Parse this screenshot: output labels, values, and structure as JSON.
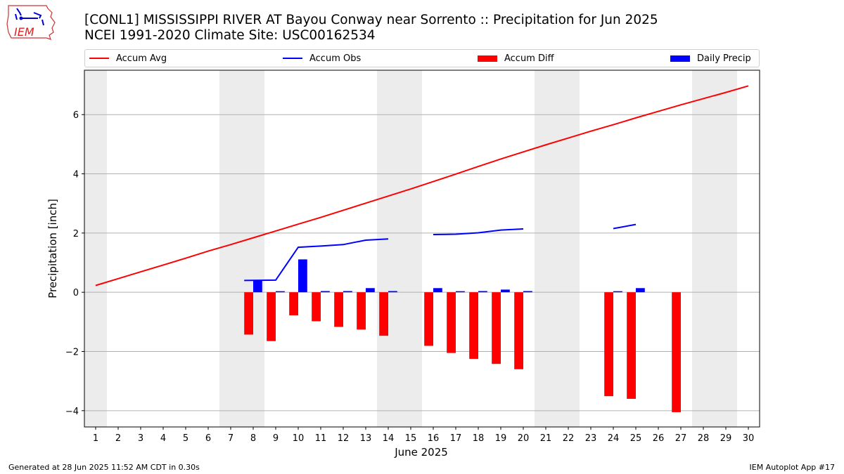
{
  "header": {
    "title_line1": "[CONL1] MISSISSIPPI RIVER  AT Bayou Conway near Sorrento :: Precipitation for Jun 2025",
    "title_line2": "NCEI 1991-2020 Climate Site: USC00162534"
  },
  "logo": {
    "text": "IEM",
    "icon": "iem-iowa-logo"
  },
  "footer": {
    "generated": "Generated at 28 Jun 2025 11:52 AM CDT in 0.30s",
    "app": "IEM Autoplot App #17"
  },
  "colors": {
    "avg": "#ff0000",
    "obs": "#0000ff",
    "diff": "#ff0000",
    "precip": "#0000ff",
    "weekend": "#ececec",
    "grid": "#b0b0b0"
  },
  "legend": [
    {
      "label": "Accum Avg",
      "kind": "line",
      "color": "#ff0000"
    },
    {
      "label": "Accum Obs",
      "kind": "line",
      "color": "#0000ff"
    },
    {
      "label": "Accum Diff",
      "kind": "patch",
      "color": "#ff0000"
    },
    {
      "label": "Daily Precip",
      "kind": "patch",
      "color": "#0000ff"
    }
  ],
  "chart_data": {
    "type": "bar",
    "xlabel": "June 2025",
    "ylabel": "Precipitation [inch]",
    "xlim": [
      0.5,
      30.5
    ],
    "ylim": [
      -4.55,
      7.5
    ],
    "yticks": [
      -4,
      -2,
      0,
      2,
      4,
      6
    ],
    "days": [
      1,
      2,
      3,
      4,
      5,
      6,
      7,
      8,
      9,
      10,
      11,
      12,
      13,
      14,
      15,
      16,
      17,
      18,
      19,
      20,
      21,
      22,
      23,
      24,
      25,
      26,
      27,
      28,
      29,
      30
    ],
    "weekend_days": [
      1,
      7,
      8,
      14,
      15,
      21,
      22,
      28,
      29
    ],
    "series": [
      {
        "name": "Accum Avg",
        "type": "line",
        "values": [
          0.23,
          0.46,
          0.69,
          0.92,
          1.15,
          1.39,
          1.61,
          1.84,
          2.07,
          2.3,
          2.53,
          2.77,
          3.01,
          3.25,
          3.49,
          3.74,
          3.99,
          4.25,
          4.5,
          4.74,
          4.98,
          5.21,
          5.44,
          5.66,
          5.89,
          6.11,
          6.33,
          6.54,
          6.75,
          6.97
        ]
      },
      {
        "name": "Accum Obs",
        "type": "line",
        "values": [
          null,
          null,
          null,
          null,
          null,
          null,
          null,
          0.4,
          0.41,
          1.52,
          1.56,
          1.61,
          1.76,
          1.8,
          null,
          1.95,
          1.96,
          2.01,
          2.1,
          2.14,
          null,
          null,
          null,
          2.15,
          2.29,
          null,
          null,
          null,
          null,
          null
        ]
      },
      {
        "name": "Accum Diff",
        "type": "bar",
        "values": [
          null,
          null,
          null,
          null,
          null,
          null,
          null,
          -1.43,
          -1.65,
          -0.78,
          -0.98,
          -1.17,
          -1.26,
          -1.47,
          null,
          -1.81,
          -2.05,
          -2.25,
          -2.42,
          -2.6,
          null,
          null,
          null,
          -3.51,
          -3.6,
          null,
          -4.05,
          null,
          null,
          null
        ]
      },
      {
        "name": "Daily Precip",
        "type": "bar",
        "values": [
          null,
          null,
          null,
          null,
          null,
          null,
          null,
          0.4,
          0.02,
          1.11,
          0.04,
          0.04,
          0.14,
          0.04,
          null,
          0.14,
          0.02,
          0.04,
          0.09,
          0.04,
          null,
          null,
          null,
          0.02,
          0.14,
          null,
          null,
          null,
          null,
          null
        ]
      }
    ]
  }
}
